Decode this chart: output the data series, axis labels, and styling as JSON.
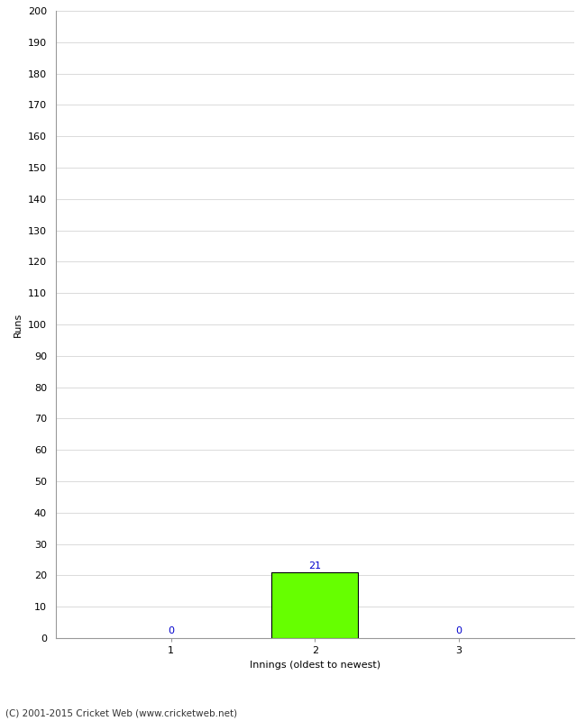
{
  "xlabel": "Innings (oldest to newest)",
  "ylabel": "Runs",
  "categories": [
    1,
    2,
    3
  ],
  "values": [
    0,
    21,
    0
  ],
  "bar_color": "#66ff00",
  "bar_edge_color": "#000000",
  "ylim": [
    0,
    200
  ],
  "yticks": [
    0,
    10,
    20,
    30,
    40,
    50,
    60,
    70,
    80,
    90,
    100,
    110,
    120,
    130,
    140,
    150,
    160,
    170,
    180,
    190,
    200
  ],
  "value_label_color": "#0000cc",
  "footer_text": "(C) 2001-2015 Cricket Web (www.cricketweb.net)",
  "background_color": "#ffffff",
  "grid_color": "#cccccc",
  "spine_color": "#999999",
  "tick_label_fontsize": 8,
  "axis_label_fontsize": 8
}
